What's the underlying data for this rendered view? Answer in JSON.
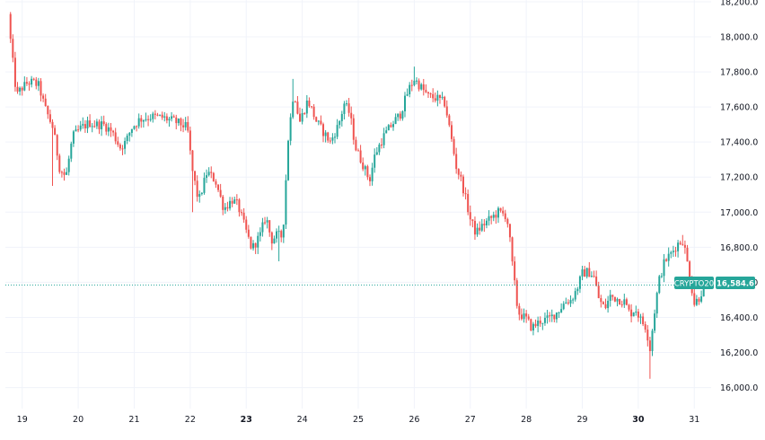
{
  "chart_data": {
    "type": "candlestick",
    "symbol": "CRYPTO20",
    "last_price": 16584.6,
    "last_price_label": "16,584.6",
    "colors": {
      "up": "#26a69a",
      "down": "#ef5350",
      "grid": "#f0f3fa",
      "price_line": "#26a69a",
      "badge_bg": "#26a69a",
      "badge_text": "#ffffff"
    },
    "ylim": [
      15880,
      18210
    ],
    "y_ticks": [
      {
        "value": 18200,
        "label": "18,200.0"
      },
      {
        "value": 18000,
        "label": "18,000.0"
      },
      {
        "value": 17800,
        "label": "17,800.0"
      },
      {
        "value": 17600,
        "label": "17,600.0"
      },
      {
        "value": 17400,
        "label": "17,400.0"
      },
      {
        "value": 17200,
        "label": "17,200.0"
      },
      {
        "value": 17000,
        "label": "17,000.0"
      },
      {
        "value": 16800,
        "label": "16,800.0"
      },
      {
        "value": 16600,
        "label": "16,600.0"
      },
      {
        "value": 16400,
        "label": "16,400.0"
      },
      {
        "value": 16200,
        "label": "16,200.0"
      },
      {
        "value": 16000,
        "label": "16,000.0"
      }
    ],
    "x_ticks": [
      {
        "label": "19",
        "day": 0.25,
        "bold": false
      },
      {
        "label": "20",
        "day": 1.25,
        "bold": false
      },
      {
        "label": "21",
        "day": 2.25,
        "bold": false
      },
      {
        "label": "22",
        "day": 3.25,
        "bold": false
      },
      {
        "label": "23",
        "day": 4.25,
        "bold": true
      },
      {
        "label": "24",
        "day": 5.25,
        "bold": false
      },
      {
        "label": "25",
        "day": 6.25,
        "bold": false
      },
      {
        "label": "26",
        "day": 7.25,
        "bold": false
      },
      {
        "label": "27",
        "day": 8.25,
        "bold": false
      },
      {
        "label": "28",
        "day": 9.25,
        "bold": false
      },
      {
        "label": "29",
        "day": 10.25,
        "bold": false
      },
      {
        "label": "30",
        "day": 11.25,
        "bold": true
      },
      {
        "label": "31",
        "day": 12.25,
        "bold": false
      }
    ],
    "x_range_days": [
      -0.05,
      12.55
    ],
    "anchors": [
      [
        0.0,
        18130
      ],
      [
        0.05,
        17950
      ],
      [
        0.15,
        17660
      ],
      [
        0.22,
        17700
      ],
      [
        0.35,
        17740
      ],
      [
        0.45,
        17740
      ],
      [
        0.55,
        17720
      ],
      [
        0.65,
        17600
      ],
      [
        0.8,
        17480
      ],
      [
        0.92,
        17250
      ],
      [
        1.03,
        17200
      ],
      [
        1.15,
        17430
      ],
      [
        1.3,
        17480
      ],
      [
        1.45,
        17510
      ],
      [
        1.55,
        17500
      ],
      [
        1.7,
        17500
      ],
      [
        1.85,
        17460
      ],
      [
        2.0,
        17370
      ],
      [
        2.1,
        17400
      ],
      [
        2.2,
        17480
      ],
      [
        2.35,
        17530
      ],
      [
        2.55,
        17545
      ],
      [
        2.75,
        17540
      ],
      [
        2.95,
        17520
      ],
      [
        3.1,
        17500
      ],
      [
        3.2,
        17480
      ],
      [
        3.28,
        17250
      ],
      [
        3.4,
        17060
      ],
      [
        3.55,
        17230
      ],
      [
        3.7,
        17180
      ],
      [
        3.85,
        17020
      ],
      [
        4.0,
        17070
      ],
      [
        4.1,
        17040
      ],
      [
        4.25,
        16890
      ],
      [
        4.35,
        16790
      ],
      [
        4.5,
        16870
      ],
      [
        4.6,
        16980
      ],
      [
        4.7,
        16840
      ],
      [
        4.8,
        16870
      ],
      [
        4.9,
        16860
      ],
      [
        5.0,
        17420
      ],
      [
        5.1,
        17700
      ],
      [
        5.2,
        17510
      ],
      [
        5.35,
        17640
      ],
      [
        5.5,
        17520
      ],
      [
        5.6,
        17470
      ],
      [
        5.75,
        17400
      ],
      [
        5.9,
        17500
      ],
      [
        6.0,
        17620
      ],
      [
        6.1,
        17560
      ],
      [
        6.2,
        17370
      ],
      [
        6.35,
        17260
      ],
      [
        6.45,
        17180
      ],
      [
        6.55,
        17330
      ],
      [
        6.7,
        17430
      ],
      [
        6.85,
        17500
      ],
      [
        7.0,
        17560
      ],
      [
        7.15,
        17700
      ],
      [
        7.25,
        17760
      ],
      [
        7.35,
        17720
      ],
      [
        7.5,
        17660
      ],
      [
        7.65,
        17650
      ],
      [
        7.8,
        17620
      ],
      [
        7.9,
        17440
      ],
      [
        8.0,
        17260
      ],
      [
        8.1,
        17170
      ],
      [
        8.25,
        16960
      ],
      [
        8.35,
        16880
      ],
      [
        8.45,
        16920
      ],
      [
        8.6,
        16960
      ],
      [
        8.75,
        17000
      ],
      [
        8.9,
        16980
      ],
      [
        8.95,
        16860
      ],
      [
        9.0,
        16700
      ],
      [
        9.1,
        16430
      ],
      [
        9.25,
        16390
      ],
      [
        9.35,
        16340
      ],
      [
        9.5,
        16380
      ],
      [
        9.65,
        16390
      ],
      [
        9.8,
        16430
      ],
      [
        9.95,
        16490
      ],
      [
        10.05,
        16500
      ],
      [
        10.15,
        16560
      ],
      [
        10.25,
        16650
      ],
      [
        10.35,
        16660
      ],
      [
        10.45,
        16640
      ],
      [
        10.55,
        16500
      ],
      [
        10.65,
        16450
      ],
      [
        10.75,
        16520
      ],
      [
        10.85,
        16510
      ],
      [
        11.0,
        16490
      ],
      [
        11.1,
        16420
      ],
      [
        11.2,
        16450
      ],
      [
        11.3,
        16380
      ],
      [
        11.4,
        16340
      ],
      [
        11.45,
        16200
      ],
      [
        11.55,
        16460
      ],
      [
        11.62,
        16610
      ],
      [
        11.72,
        16720
      ],
      [
        11.85,
        16770
      ],
      [
        11.95,
        16820
      ],
      [
        12.05,
        16840
      ],
      [
        12.15,
        16670
      ],
      [
        12.25,
        16480
      ],
      [
        12.35,
        16520
      ],
      [
        12.42,
        16584.6
      ]
    ]
  }
}
